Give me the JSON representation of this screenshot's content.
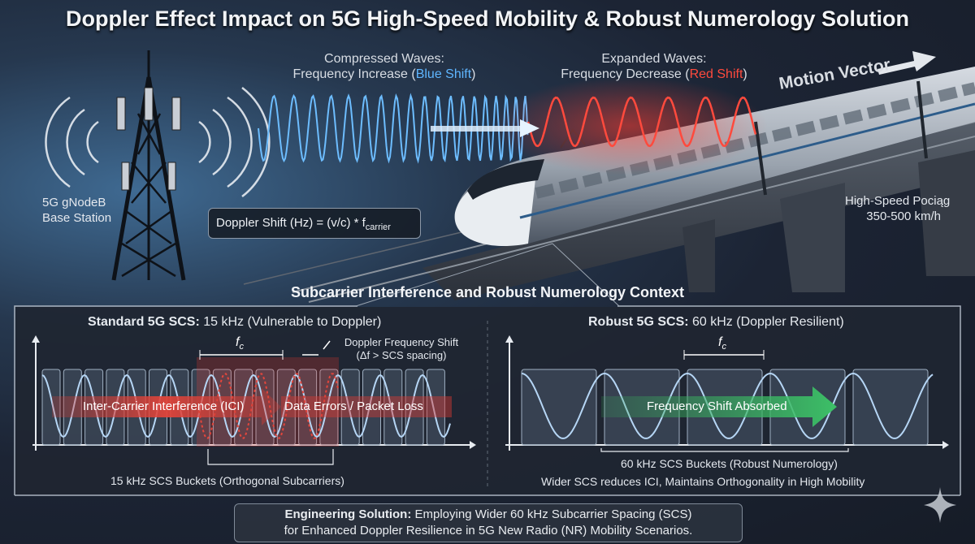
{
  "title": "Doppler Effect Impact on 5G High-Speed Mobility & Robust Numerology Solution",
  "waves": {
    "compressed_line1": "Compressed Waves:",
    "compressed_line2_prefix": "Frequency Increase (",
    "compressed_shift": "Blue Shift",
    "compressed_line2_suffix": ")",
    "expanded_line1": "Expanded Waves:",
    "expanded_line2_prefix": "Frequency Decrease (",
    "expanded_shift": "Red Shift",
    "expanded_line2_suffix": ")",
    "motion_vector": "Motion Vector"
  },
  "base_station": {
    "line1": "5G gNodeB",
    "line2": "Base Station"
  },
  "train": {
    "line1": "High-Speed Pociąg",
    "line2": "350-500 km/h"
  },
  "formula": {
    "text": "Doppler Shift (Hz) = (v/c) * f",
    "subscript": "carrier"
  },
  "section_title": "Subcarrier Interference and Robust Numerology Context",
  "left_panel": {
    "heading_bold": "Standard 5G SCS:",
    "heading_rest": " 15 kHz (Vulnerable to Doppler)",
    "fc_label": "f",
    "fc_sub": "c",
    "doppler_line1": "Doppler Frequency Shift",
    "doppler_line2": "(Δf > SCS spacing)",
    "ici_label": "Inter-Carrier Interference (ICI)",
    "errors_label": "Data Errors / Packet Loss",
    "bucket_caption": "15 kHz SCS Buckets (Orthogonal Subcarriers)"
  },
  "right_panel": {
    "heading_bold": "Robust 5G SCS:",
    "heading_rest": " 60 kHz (Doppler Resilient)",
    "fc_label": "f",
    "fc_sub": "c",
    "absorbed_label": "Frequency Shift Absorbed",
    "bucket_caption": "60 kHz SCS Buckets (Robust Numerology)",
    "note": "Wider SCS reduces ICI, Maintains Orthogonality in High Mobility"
  },
  "footer": {
    "bold": "Engineering Solution:",
    "line1_rest": " Employing Wider 60 kHz Subcarrier Spacing (SCS)",
    "line2": "for Enhanced Doppler Resilience in 5G New Radio (NR) Mobility Scenarios."
  },
  "colors": {
    "blue_wave": "#5fb6ff",
    "red_wave": "#ff4a3d",
    "ici_red": "#d83a32",
    "absorbed_green": "#37a85a"
  }
}
